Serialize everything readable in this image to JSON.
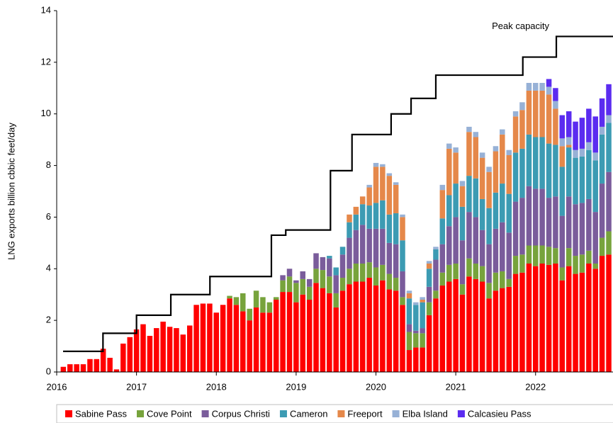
{
  "chart_data": {
    "type": "bar",
    "stacked": true,
    "ylabel": "LNG exports billion cbbic feet/day",
    "xlim": [
      2016,
      2022.97
    ],
    "xticks": [
      2016,
      2017,
      2018,
      2019,
      2020,
      2021,
      2022
    ],
    "ylim": [
      0,
      14
    ],
    "yticks": [
      0,
      2,
      4,
      6,
      8,
      10,
      12,
      14
    ],
    "x": [
      2016,
      2016.083,
      2016.167,
      2016.25,
      2016.333,
      2016.417,
      2016.5,
      2016.583,
      2016.667,
      2016.75,
      2016.833,
      2016.917,
      2017,
      2017.083,
      2017.167,
      2017.25,
      2017.333,
      2017.417,
      2017.5,
      2017.583,
      2017.667,
      2017.75,
      2017.833,
      2017.917,
      2018,
      2018.083,
      2018.167,
      2018.25,
      2018.333,
      2018.417,
      2018.5,
      2018.583,
      2018.667,
      2018.75,
      2018.833,
      2018.917,
      2019,
      2019.083,
      2019.167,
      2019.25,
      2019.333,
      2019.417,
      2019.5,
      2019.583,
      2019.667,
      2019.75,
      2019.833,
      2019.917,
      2020,
      2020.083,
      2020.167,
      2020.25,
      2020.333,
      2020.417,
      2020.5,
      2020.583,
      2020.667,
      2020.75,
      2020.833,
      2020.917,
      2021,
      2021.083,
      2021.167,
      2021.25,
      2021.333,
      2021.417,
      2021.5,
      2021.583,
      2021.667,
      2021.75,
      2021.833,
      2021.917,
      2022,
      2022.083,
      2022.167,
      2022.25,
      2022.333,
      2022.417,
      2022.5,
      2022.583,
      2022.667,
      2022.75,
      2022.833,
      2022.917
    ],
    "series": [
      {
        "name": "Sabine Pass",
        "color": "#ff0000",
        "values": [
          0,
          0.2,
          0.3,
          0.3,
          0.3,
          0.5,
          0.5,
          0.9,
          0.55,
          0.1,
          1.1,
          1.35,
          1.65,
          1.85,
          1.4,
          1.7,
          1.95,
          1.75,
          1.7,
          1.45,
          1.8,
          2.6,
          2.65,
          2.65,
          2.3,
          2.6,
          2.85,
          2.6,
          2.35,
          2.0,
          2.5,
          2.3,
          2.3,
          2.8,
          3.1,
          3.1,
          2.7,
          3.0,
          2.8,
          3.45,
          3.25,
          3.05,
          2.5,
          3.15,
          3.4,
          3.5,
          3.5,
          3.65,
          3.35,
          3.55,
          3.2,
          3.15,
          2.6,
          0.85,
          0.95,
          0.95,
          2.2,
          2.85,
          3.35,
          3.5,
          3.6,
          3.0,
          3.7,
          3.6,
          3.5,
          2.85,
          3.15,
          3.25,
          3.3,
          3.8,
          3.85,
          4.2,
          4.1,
          4.2,
          4.15,
          4.2,
          3.55,
          4.1,
          3.8,
          3.85,
          4.2,
          4.0,
          4.5,
          4.55
        ]
      },
      {
        "name": "Cove Point",
        "color": "#77a33c",
        "values": [
          0,
          0,
          0,
          0,
          0,
          0,
          0,
          0,
          0,
          0,
          0,
          0,
          0,
          0,
          0,
          0,
          0,
          0,
          0,
          0,
          0,
          0,
          0,
          0,
          0,
          0,
          0.1,
          0.3,
          0.7,
          0.45,
          0.65,
          0.6,
          0.4,
          0.1,
          0.45,
          0.6,
          0.75,
          0.6,
          0.5,
          0.55,
          0.7,
          0.65,
          0.55,
          0.5,
          0.6,
          0.7,
          0.7,
          0.6,
          0.7,
          0.6,
          0.6,
          0.5,
          0.3,
          0.7,
          0.55,
          0.55,
          0.5,
          0.3,
          0.5,
          0.65,
          0.6,
          0.4,
          0.7,
          0.6,
          0.6,
          0.6,
          0.7,
          0.65,
          0.3,
          0.7,
          0.7,
          0.7,
          0.8,
          0.7,
          0.7,
          0.6,
          0.5,
          0.7,
          0.7,
          0.7,
          0.5,
          0.2,
          0.7,
          0.9
        ]
      },
      {
        "name": "Corpus Christi",
        "color": "#7a5c9b",
        "values": [
          0,
          0,
          0,
          0,
          0,
          0,
          0,
          0,
          0,
          0,
          0,
          0,
          0,
          0,
          0,
          0,
          0,
          0,
          0,
          0,
          0,
          0,
          0,
          0,
          0,
          0,
          0,
          0,
          0,
          0,
          0,
          0,
          0,
          0,
          0.2,
          0.3,
          0.1,
          0.3,
          0.3,
          0.6,
          0.5,
          0.7,
          0.7,
          0.9,
          1.2,
          1.3,
          1.5,
          1.3,
          1.5,
          1.4,
          1.2,
          1.3,
          1.0,
          0.3,
          0.1,
          0.2,
          0.6,
          1.2,
          1.1,
          1.5,
          1.8,
          1.7,
          1.8,
          1.8,
          1.4,
          1.5,
          1.7,
          1.9,
          1.8,
          2.1,
          2.2,
          2.3,
          2.2,
          2.2,
          1.9,
          2.0,
          2.0,
          2.0,
          2.0,
          2.0,
          2.0,
          2.0,
          2.1,
          2.3
        ]
      },
      {
        "name": "Cameron",
        "color": "#3c9bb3",
        "values": [
          0,
          0,
          0,
          0,
          0,
          0,
          0,
          0,
          0,
          0,
          0,
          0,
          0,
          0,
          0,
          0,
          0,
          0,
          0,
          0,
          0,
          0,
          0,
          0,
          0,
          0,
          0,
          0,
          0,
          0,
          0,
          0,
          0,
          0,
          0,
          0,
          0,
          0,
          0,
          0,
          0,
          0.1,
          0.3,
          0.3,
          0.6,
          0.6,
          0.8,
          0.9,
          1.0,
          1.1,
          1.1,
          1.2,
          1.2,
          1.0,
          1.0,
          1.0,
          0.7,
          0.4,
          1.0,
          1.2,
          1.3,
          1.3,
          1.4,
          1.5,
          1.2,
          1.4,
          1.4,
          1.5,
          1.5,
          1.9,
          1.9,
          2.0,
          2.0,
          2.0,
          2.1,
          2.0,
          1.9,
          1.9,
          1.8,
          1.8,
          1.9,
          2.0,
          1.9,
          1.9
        ]
      },
      {
        "name": "Freeport",
        "color": "#e5884a",
        "values": [
          0,
          0,
          0,
          0,
          0,
          0,
          0,
          0,
          0,
          0,
          0,
          0,
          0,
          0,
          0,
          0,
          0,
          0,
          0,
          0,
          0,
          0,
          0,
          0,
          0,
          0,
          0,
          0,
          0,
          0,
          0,
          0,
          0,
          0,
          0,
          0,
          0,
          0,
          0,
          0,
          0,
          0,
          0,
          0,
          0.3,
          0.3,
          0.3,
          0.7,
          1.4,
          1.3,
          1.5,
          1.1,
          0.9,
          0.2,
          0,
          0.1,
          0.2,
          0,
          1.1,
          1.8,
          1.2,
          0.8,
          1.7,
          1.6,
          1.6,
          1.4,
          1.6,
          1.9,
          1.5,
          1.4,
          1.5,
          1.7,
          1.8,
          1.8,
          1.9,
          1.4,
          0.8,
          0.1,
          0,
          0,
          0,
          0,
          0,
          0
        ]
      },
      {
        "name": "Elba Island",
        "color": "#97b1d6",
        "values": [
          0,
          0,
          0,
          0,
          0,
          0,
          0,
          0,
          0,
          0,
          0,
          0,
          0,
          0,
          0,
          0,
          0,
          0,
          0,
          0,
          0,
          0,
          0,
          0,
          0,
          0,
          0,
          0,
          0,
          0,
          0,
          0,
          0,
          0,
          0,
          0,
          0,
          0,
          0,
          0,
          0,
          0,
          0,
          0,
          0,
          0,
          0,
          0.1,
          0.15,
          0.1,
          0.1,
          0.1,
          0.1,
          0.1,
          0.1,
          0.1,
          0.1,
          0.1,
          0.2,
          0.2,
          0.2,
          0.2,
          0.2,
          0.2,
          0.2,
          0.2,
          0.2,
          0.2,
          0.2,
          0.2,
          0.3,
          0.3,
          0.3,
          0.3,
          0.3,
          0.3,
          0.3,
          0.3,
          0.3,
          0.3,
          0.3,
          0.3,
          0.3,
          0.3
        ]
      },
      {
        "name": "Calcasieu Pass",
        "color": "#5b2cf0",
        "values": [
          0,
          0,
          0,
          0,
          0,
          0,
          0,
          0,
          0,
          0,
          0,
          0,
          0,
          0,
          0,
          0,
          0,
          0,
          0,
          0,
          0,
          0,
          0,
          0,
          0,
          0,
          0,
          0,
          0,
          0,
          0,
          0,
          0,
          0,
          0,
          0,
          0,
          0,
          0,
          0,
          0,
          0,
          0,
          0,
          0,
          0,
          0,
          0,
          0,
          0,
          0,
          0,
          0,
          0,
          0,
          0,
          0,
          0,
          0,
          0,
          0,
          0,
          0,
          0,
          0,
          0,
          0,
          0,
          0,
          0,
          0,
          0,
          0,
          0,
          0.3,
          0.5,
          0.9,
          1.0,
          1.1,
          1.2,
          1.3,
          1.4,
          1.1,
          1.2
        ]
      }
    ],
    "line": {
      "name": "Peak capacity",
      "color": "#000000",
      "x": [
        2016.08,
        2016.58,
        2017.0,
        2017.43,
        2017.92,
        2018.69,
        2018.87,
        2019.43,
        2019.7,
        2020.19,
        2020.44,
        2020.75,
        2021.84,
        2022.26
      ],
      "values": [
        0.8,
        1.5,
        2.2,
        3.0,
        3.7,
        5.3,
        5.5,
        7.8,
        9.2,
        10.0,
        10.6,
        11.5,
        12.2,
        13.0
      ]
    }
  }
}
